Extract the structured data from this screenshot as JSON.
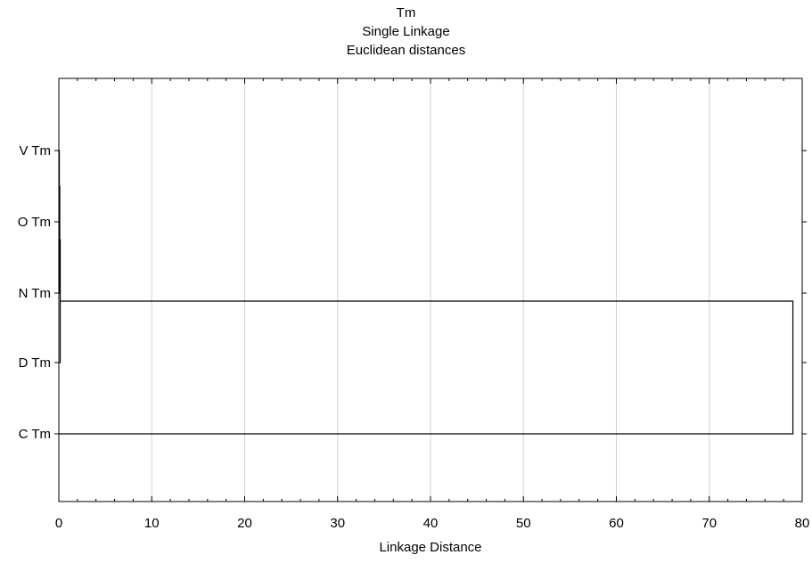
{
  "chart_data": {
    "type": "dendrogram",
    "title": "Tm",
    "subtitle_1": "Single Linkage",
    "subtitle_2": "Euclidean distances",
    "xlabel": "Linkage Distance",
    "ylabel": "",
    "xlim": [
      0,
      80
    ],
    "xticks": [
      "0",
      "10",
      "20",
      "30",
      "40",
      "50",
      "60",
      "70",
      "80"
    ],
    "grid": "vertical",
    "leaves": [
      "V Tm",
      "O Tm",
      "N Tm",
      "D Tm",
      "C Tm"
    ],
    "merges": [
      {
        "join": [
          "V Tm",
          "O Tm"
        ],
        "distance": 0.05
      },
      {
        "join": [
          "(V Tm, O Tm)",
          "N Tm"
        ],
        "distance": 0.1
      },
      {
        "join": [
          "(V Tm, O Tm, N Tm)",
          "D Tm"
        ],
        "distance": 0.15
      },
      {
        "join": [
          "(V Tm, O Tm, N Tm, D Tm)",
          "C Tm"
        ],
        "distance": 79
      }
    ]
  }
}
